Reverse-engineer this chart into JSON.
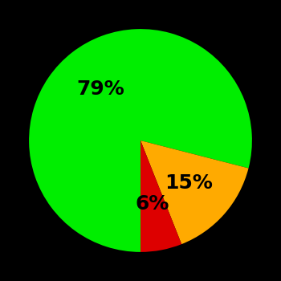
{
  "slices": [
    79,
    15,
    6
  ],
  "colors": [
    "#00ee00",
    "#ffaa00",
    "#dd0000"
  ],
  "labels": [
    "79%",
    "15%",
    "6%"
  ],
  "background_color": "#000000",
  "label_fontsize": 18,
  "label_fontweight": "bold",
  "label_color": "#000000",
  "startangle": -90,
  "figsize": [
    3.5,
    3.5
  ],
  "dpi": 100
}
